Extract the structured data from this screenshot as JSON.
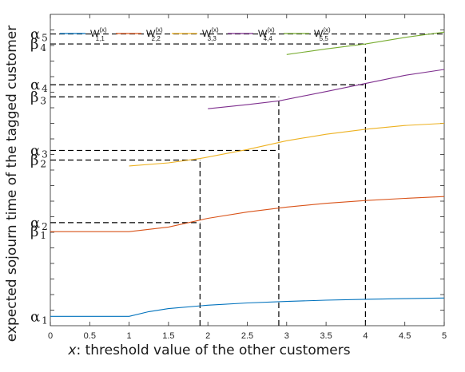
{
  "chart_data": {
    "type": "line",
    "xlabel_var": "x",
    "xlabel_rest": ": threshold value of the other customers",
    "ylabel": "expected sojourn time of the tagged customer",
    "xlim": [
      0,
      5
    ],
    "ylim": [
      0,
      1
    ],
    "x_ticks": [
      "0",
      "0.5",
      "1",
      "1.5",
      "2",
      "2.5",
      "3",
      "3.5",
      "4",
      "4.5",
      "5"
    ],
    "grid": false,
    "legend_position": "top-left",
    "series": [
      {
        "name": "W",
        "sup": "(x)",
        "sub": "1,1",
        "color": "#0072BD",
        "x": [
          0,
          1,
          1.25,
          1.5,
          2,
          2.5,
          3,
          3.5,
          4,
          4.5,
          5
        ],
        "y": [
          0.03,
          0.03,
          0.045,
          0.055,
          0.066,
          0.073,
          0.078,
          0.082,
          0.085,
          0.087,
          0.089
        ]
      },
      {
        "name": "W",
        "sup": "(x)",
        "sub": "2,2",
        "color": "#D95319",
        "x": [
          0,
          1,
          1.5,
          2,
          2.5,
          3,
          3.5,
          4,
          4.5,
          5
        ],
        "y": [
          0.302,
          0.302,
          0.317,
          0.345,
          0.365,
          0.381,
          0.393,
          0.402,
          0.409,
          0.415
        ]
      },
      {
        "name": "W",
        "sup": "(x)",
        "sub": "3,3",
        "color": "#EDB120",
        "x": [
          1,
          1.5,
          1.9,
          2.5,
          3,
          3.5,
          4,
          4.5,
          5
        ],
        "y": [
          0.513,
          0.523,
          0.537,
          0.566,
          0.594,
          0.615,
          0.631,
          0.643,
          0.65
        ]
      },
      {
        "name": "W",
        "sup": "(x)",
        "sub": "4,4",
        "color": "#7E2F8E",
        "x": [
          2,
          2.5,
          2.9,
          3.5,
          4,
          4.5,
          5
        ],
        "y": [
          0.697,
          0.71,
          0.722,
          0.752,
          0.778,
          0.804,
          0.823
        ]
      },
      {
        "name": "W",
        "sup": "(x)",
        "sub": "5,5",
        "color": "#77AC30",
        "x": [
          3,
          3.5,
          4,
          4.5,
          5
        ],
        "y": [
          0.871,
          0.889,
          0.905,
          0.926,
          0.943
        ]
      }
    ],
    "levels": [
      {
        "sym": "α",
        "sub": "5",
        "y": 0.937,
        "x_end": 5
      },
      {
        "sym": "β",
        "sub": "4",
        "y": 0.905,
        "x_end": 4
      },
      {
        "sym": "α",
        "sub": "4",
        "y": 0.774,
        "x_end": 4
      },
      {
        "sym": "β",
        "sub": "3",
        "y": 0.735,
        "x_end": 2.9
      },
      {
        "sym": "α",
        "sub": "3",
        "y": 0.563,
        "x_end": 2.9
      },
      {
        "sym": "β",
        "sub": "2",
        "y": 0.532,
        "x_end": 1.9
      },
      {
        "sym": "α",
        "sub": "2",
        "y": 0.331,
        "x_end": 1.9
      },
      {
        "sym": "β",
        "sub": "1",
        "y": 0.302,
        "x_end": null
      },
      {
        "sym": "α",
        "sub": "1",
        "y": 0.03,
        "x_end": null
      }
    ],
    "dashed_hlines": [
      {
        "y": 0.937,
        "x0": 0,
        "x1": 5
      },
      {
        "y": 0.905,
        "x0": 0,
        "x1": 4
      },
      {
        "y": 0.774,
        "x0": 0,
        "x1": 4
      },
      {
        "y": 0.735,
        "x0": 0,
        "x1": 2.9
      },
      {
        "y": 0.563,
        "x0": 0,
        "x1": 2.9
      },
      {
        "y": 0.532,
        "x0": 0,
        "x1": 1.9
      },
      {
        "y": 0.331,
        "x0": 0,
        "x1": 1.9
      }
    ],
    "dashed_vlines": [
      {
        "x": 1.9,
        "y0": 0,
        "y1": 0.532
      },
      {
        "x": 2.9,
        "y0": 0,
        "y1": 0.735
      },
      {
        "x": 4.0,
        "y0": 0,
        "y1": 0.905
      }
    ]
  }
}
